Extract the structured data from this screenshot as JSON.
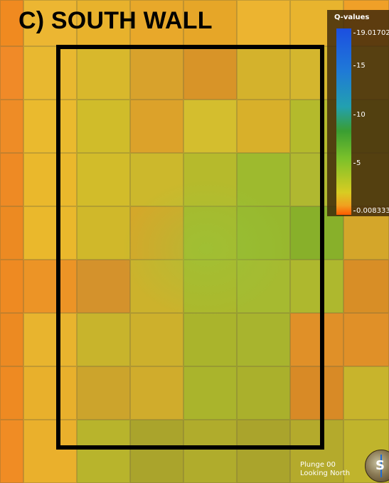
{
  "panel_title": "C) SOUTH WALL",
  "legend": {
    "title": "Q-values",
    "max_label": "19.01702",
    "ticks": [
      "15",
      "10",
      "5"
    ],
    "min_label": "0.008333"
  },
  "status": {
    "line1": "Plunge 00",
    "line2": "Looking North"
  },
  "compass_letter": "S",
  "colors": {
    "frame": "#000000",
    "legend_background": "#3c260a",
    "colormap": [
      "#1c4fe0",
      "#1f78d8",
      "#22a0b0",
      "#3a9e32",
      "#7cc12a",
      "#d8cc22",
      "#f0a020",
      "#ff5a00"
    ],
    "grid_rows": [
      [
        "#f08a20",
        "#ecb632",
        "#e8b22c",
        "#e8a82a",
        "#e6a628",
        "#ecb430",
        "#e8b42e",
        "#f0a028"
      ],
      [
        "#f08a28",
        "#e8b830",
        "#d8b82c",
        "#d8a22c",
        "#d89428",
        "#d4b22c",
        "#d4b62e",
        "#d4b432"
      ],
      [
        "#ee8c26",
        "#eaba2e",
        "#d0bc2a",
        "#dca22a",
        "#d4be2e",
        "#d8b02a",
        "#b4ba2c",
        "#b8b830"
      ],
      [
        "#ee8a24",
        "#eab82c",
        "#d2bc2a",
        "#ccb82c",
        "#b6ba2c",
        "#9eba2e",
        "#b0b830",
        "#c4b82e"
      ],
      [
        "#ec8a22",
        "#eab82c",
        "#d0b82a",
        "#d4a82a",
        "#a8b82c",
        "#98b82e",
        "#88b02a",
        "#d4a62a",
        "#f08a24"
      ],
      [
        "#ee8a22",
        "#ec9426",
        "#d4922c",
        "#ccb22c",
        "#acb82c",
        "#a6ba30",
        "#aeb82e",
        "#d88e26",
        "#f07a1c"
      ],
      [
        "#ec8a22",
        "#e8b42e",
        "#c8b42c",
        "#cdb02c",
        "#aab42c",
        "#a8b42e",
        "#e09028",
        "#e09028",
        "#f07a18"
      ],
      [
        "#ee8a22",
        "#e8b02c",
        "#cca42c",
        "#d0ac2c",
        "#aab42c",
        "#aab02c",
        "#d88a26",
        "#c8b42c",
        "#d8b42c"
      ],
      [
        "#f08c24",
        "#eab02c",
        "#b8b42c",
        "#aaa42c",
        "#b0ac2c",
        "#aaa42c",
        "#b4aa2c",
        "#c0b42c",
        "#e8b02c"
      ]
    ]
  }
}
